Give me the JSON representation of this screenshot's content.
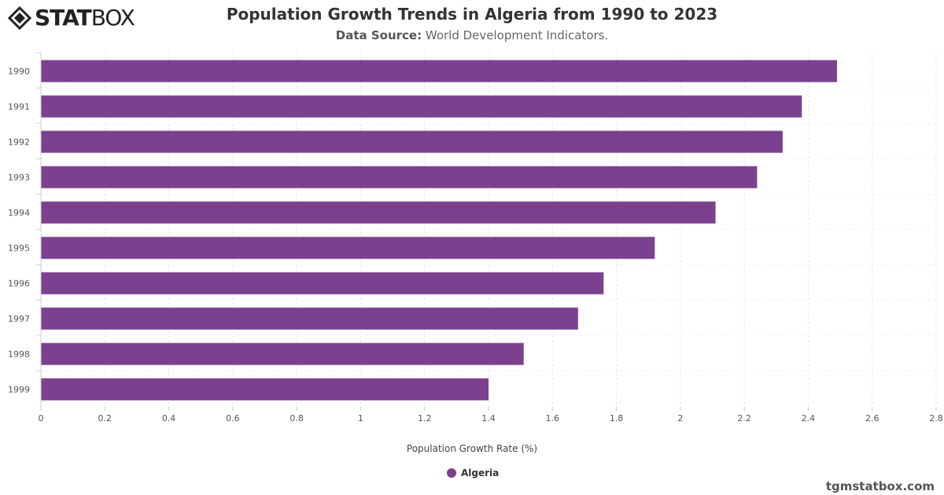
{
  "logo": {
    "text": "STATBOX"
  },
  "title": "Population Growth Trends in Algeria from 1990 to 2023",
  "subtitle": {
    "label": "Data Source:",
    "value": "World Development Indicators."
  },
  "credit": "tgmstatbox.com",
  "chart_data": {
    "type": "bar",
    "orientation": "horizontal",
    "title": "Population Growth Trends in Algeria from 1990 to 2023",
    "xlabel": "Population Growth Rate (%)",
    "ylabel": "",
    "categories": [
      "1990",
      "1991",
      "1992",
      "1993",
      "1994",
      "1995",
      "1996",
      "1997",
      "1998",
      "1999"
    ],
    "series": [
      {
        "name": "Algeria",
        "color": "#7b418e",
        "values": [
          2.49,
          2.38,
          2.32,
          2.24,
          2.11,
          1.92,
          1.76,
          1.68,
          1.51,
          1.4
        ]
      }
    ],
    "xlim": [
      0,
      2.8
    ],
    "xticks": [
      "0",
      "0.2",
      "0.4",
      "0.6",
      "0.8",
      "1",
      "1.2",
      "1.4",
      "1.6",
      "1.8",
      "2",
      "2.2",
      "2.4",
      "2.6",
      "2.8"
    ],
    "grid": true,
    "legend": "bottom-center"
  }
}
